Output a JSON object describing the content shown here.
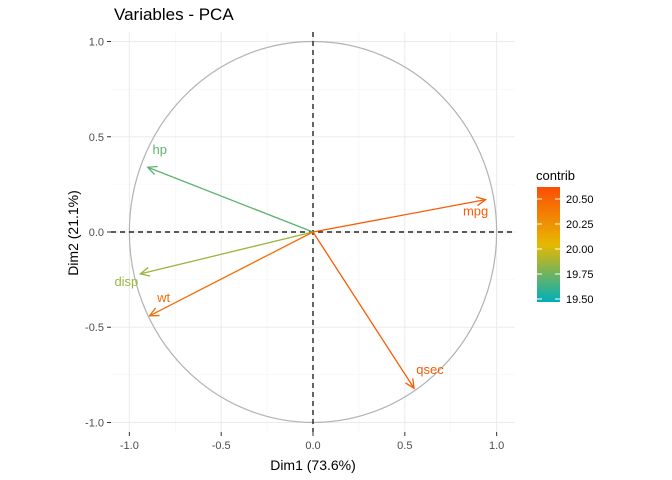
{
  "chart_data": {
    "type": "scatter",
    "subtype": "pca-variable-correlation-circle",
    "title": "Variables - PCA",
    "xlabel": "Dim1 (73.6%)",
    "ylabel": "Dim2 (21.1%)",
    "xlim": [
      -1.1,
      1.1
    ],
    "ylim": [
      -1.05,
      1.05
    ],
    "x_ticks": [
      -1.0,
      -0.5,
      0.0,
      0.5,
      1.0
    ],
    "y_ticks": [
      -1.0,
      -0.5,
      0.0,
      0.5,
      1.0
    ],
    "x_tick_labels": [
      "-1.0",
      "-0.5",
      "0.0",
      "0.5",
      "1.0"
    ],
    "y_tick_labels": [
      "-1.0",
      "-0.5",
      "0.0",
      "0.5",
      "1.0"
    ],
    "grid": true,
    "circle_radius": 1.0,
    "variables": [
      {
        "name": "mpg",
        "x": 0.94,
        "y": 0.17,
        "contrib": 20.55
      },
      {
        "name": "hp",
        "x": -0.9,
        "y": 0.34,
        "contrib": 19.7
      },
      {
        "name": "disp",
        "x": -0.94,
        "y": -0.22,
        "contrib": 19.85
      },
      {
        "name": "wt",
        "x": -0.89,
        "y": -0.44,
        "contrib": 20.45
      },
      {
        "name": "qsec",
        "x": 0.55,
        "y": -0.82,
        "contrib": 20.55
      }
    ],
    "legend": {
      "title": "contrib",
      "position": "right",
      "min": 19.47,
      "max": 20.62,
      "ticks": [
        20.5,
        20.25,
        20.0,
        19.75,
        19.5
      ],
      "tick_labels": [
        "20.50",
        "20.25",
        "20.00",
        "19.75",
        "19.50"
      ],
      "gradient_colors": [
        "#00AFBB",
        "#E7B800",
        "#FC4E07"
      ]
    }
  }
}
